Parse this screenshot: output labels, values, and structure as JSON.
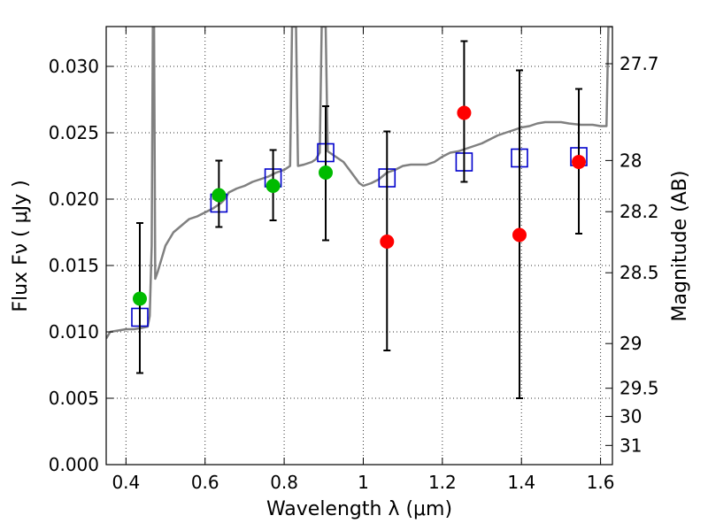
{
  "chart_data": {
    "type": "scatter",
    "xlabel": "Wavelength  λ (μm)",
    "ylabel": "Flux  Fν  ( μJy )",
    "ylabel_right": "Magnitude (AB)",
    "xlim": [
      0.35,
      1.63
    ],
    "ylim": [
      0.0,
      0.033
    ],
    "grid": true,
    "x_ticks": [
      {
        "value": 0.4,
        "label": "0.4"
      },
      {
        "value": 0.6,
        "label": "0.6"
      },
      {
        "value": 0.8,
        "label": "0.8"
      },
      {
        "value": 1.0,
        "label": "1"
      },
      {
        "value": 1.2,
        "label": "1.2"
      },
      {
        "value": 1.4,
        "label": "1.4"
      },
      {
        "value": 1.6,
        "label": "1.6"
      }
    ],
    "y_ticks": [
      {
        "value": 0.0,
        "label": "0.000"
      },
      {
        "value": 0.005,
        "label": "0.005"
      },
      {
        "value": 0.01,
        "label": "0.010"
      },
      {
        "value": 0.015,
        "label": "0.015"
      },
      {
        "value": 0.02,
        "label": "0.020"
      },
      {
        "value": 0.025,
        "label": "0.025"
      },
      {
        "value": 0.03,
        "label": "0.030"
      }
    ],
    "right_ticks": [
      {
        "value": 27.7,
        "label": "27.7"
      },
      {
        "value": 28.0,
        "label": "28"
      },
      {
        "value": 28.2,
        "label": "28.2"
      },
      {
        "value": 28.5,
        "label": "28.5"
      },
      {
        "value": 29.0,
        "label": "29"
      },
      {
        "value": 29.5,
        "label": "29.5"
      },
      {
        "value": 30.0,
        "label": "30"
      },
      {
        "value": 31.0,
        "label": "31"
      }
    ],
    "series": [
      {
        "kind": "line",
        "color": "#808080",
        "points": [
          [
            0.35,
            0.0095
          ],
          [
            0.36,
            0.01
          ],
          [
            0.38,
            0.0101
          ],
          [
            0.4,
            0.0102
          ],
          [
            0.42,
            0.0102
          ],
          [
            0.44,
            0.0103
          ],
          [
            0.455,
            0.0104
          ],
          [
            0.46,
            0.0112
          ],
          [
            0.465,
            0.0165
          ],
          [
            0.468,
            0.033
          ],
          [
            0.471,
            0.033
          ],
          [
            0.474,
            0.014
          ],
          [
            0.48,
            0.0145
          ],
          [
            0.5,
            0.0165
          ],
          [
            0.52,
            0.0175
          ],
          [
            0.54,
            0.018
          ],
          [
            0.56,
            0.0185
          ],
          [
            0.58,
            0.0187
          ],
          [
            0.6,
            0.019
          ],
          [
            0.62,
            0.0193
          ],
          [
            0.63,
            0.0195
          ],
          [
            0.64,
            0.0197
          ],
          [
            0.65,
            0.02
          ],
          [
            0.66,
            0.0205
          ],
          [
            0.68,
            0.0208
          ],
          [
            0.7,
            0.021
          ],
          [
            0.72,
            0.0213
          ],
          [
            0.74,
            0.0215
          ],
          [
            0.76,
            0.0217
          ],
          [
            0.78,
            0.022
          ],
          [
            0.8,
            0.0222
          ],
          [
            0.815,
            0.0225
          ],
          [
            0.82,
            0.033
          ],
          [
            0.83,
            0.033
          ],
          [
            0.835,
            0.0225
          ],
          [
            0.85,
            0.0226
          ],
          [
            0.87,
            0.0228
          ],
          [
            0.88,
            0.023
          ],
          [
            0.89,
            0.0235
          ],
          [
            0.895,
            0.033
          ],
          [
            0.905,
            0.033
          ],
          [
            0.91,
            0.0236
          ],
          [
            0.93,
            0.0232
          ],
          [
            0.95,
            0.0228
          ],
          [
            0.97,
            0.022
          ],
          [
            0.99,
            0.0212
          ],
          [
            1.0,
            0.021
          ],
          [
            1.02,
            0.0212
          ],
          [
            1.04,
            0.0215
          ],
          [
            1.06,
            0.022
          ],
          [
            1.08,
            0.0222
          ],
          [
            1.1,
            0.0225
          ],
          [
            1.12,
            0.0226
          ],
          [
            1.14,
            0.0226
          ],
          [
            1.16,
            0.0226
          ],
          [
            1.18,
            0.0228
          ],
          [
            1.2,
            0.0232
          ],
          [
            1.22,
            0.0235
          ],
          [
            1.24,
            0.0236
          ],
          [
            1.26,
            0.0238
          ],
          [
            1.28,
            0.024
          ],
          [
            1.3,
            0.0242
          ],
          [
            1.32,
            0.0245
          ],
          [
            1.34,
            0.0248
          ],
          [
            1.36,
            0.025
          ],
          [
            1.38,
            0.0252
          ],
          [
            1.4,
            0.0254
          ],
          [
            1.42,
            0.0255
          ],
          [
            1.44,
            0.0257
          ],
          [
            1.46,
            0.0258
          ],
          [
            1.48,
            0.0258
          ],
          [
            1.5,
            0.0258
          ],
          [
            1.52,
            0.0257
          ],
          [
            1.55,
            0.0256
          ],
          [
            1.58,
            0.0256
          ],
          [
            1.6,
            0.0255
          ],
          [
            1.615,
            0.0255
          ],
          [
            1.62,
            0.033
          ],
          [
            1.63,
            0.033
          ]
        ]
      },
      {
        "kind": "markers",
        "marker": "square",
        "color": "#0000cc",
        "points": [
          [
            0.435,
            0.0111
          ],
          [
            0.635,
            0.0197
          ],
          [
            0.772,
            0.0216
          ],
          [
            0.905,
            0.0235
          ],
          [
            1.06,
            0.0216
          ],
          [
            1.255,
            0.0228
          ],
          [
            1.395,
            0.0231
          ],
          [
            1.545,
            0.0232
          ]
        ]
      },
      {
        "kind": "markers",
        "marker": "circle",
        "color": "#00bb00",
        "points": [
          {
            "x": 0.435,
            "y": 0.0125,
            "err_low": 0.0069,
            "err_high": 0.0182
          },
          {
            "x": 0.635,
            "y": 0.0203,
            "err_low": 0.0179,
            "err_high": 0.0229
          },
          {
            "x": 0.772,
            "y": 0.021,
            "err_low": 0.0184,
            "err_high": 0.0237
          },
          {
            "x": 0.905,
            "y": 0.022,
            "err_low": 0.0169,
            "err_high": 0.027
          }
        ]
      },
      {
        "kind": "markers",
        "marker": "circle",
        "color": "#ff0000",
        "points": [
          {
            "x": 1.06,
            "y": 0.0168,
            "err_low": 0.0086,
            "err_high": 0.0251
          },
          {
            "x": 1.255,
            "y": 0.0265,
            "err_low": 0.0213,
            "err_high": 0.0319
          },
          {
            "x": 1.395,
            "y": 0.0173,
            "err_low": 0.005,
            "err_high": 0.0297
          },
          {
            "x": 1.545,
            "y": 0.0228,
            "err_low": 0.0174,
            "err_high": 0.0283
          }
        ]
      }
    ]
  }
}
